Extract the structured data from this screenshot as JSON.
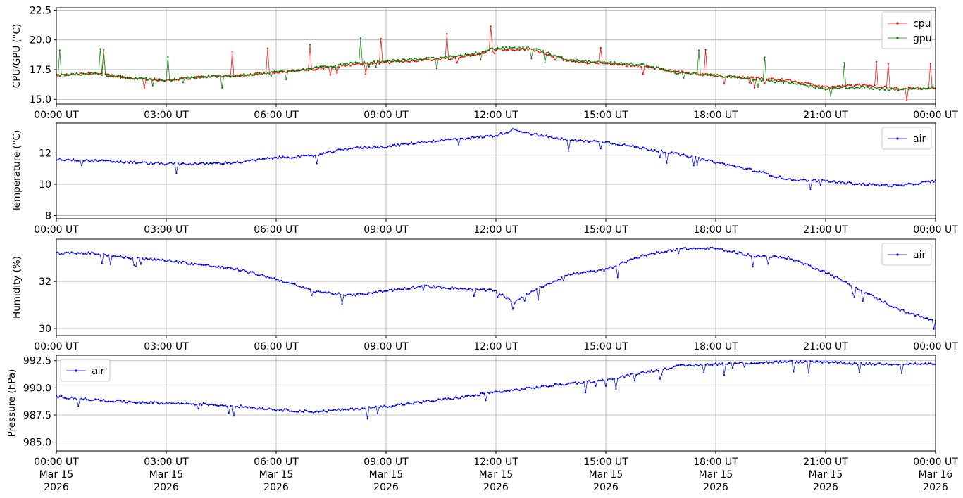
{
  "chart_data": [
    {
      "type": "line",
      "ylabel": "CPU/GPU (°C)",
      "ylim": [
        14.6,
        22.7
      ],
      "yticks": [
        15.0,
        17.5,
        20.0,
        22.5
      ],
      "ytick_labels": [
        "15.0",
        "17.5",
        "20.0",
        "22.5"
      ],
      "grid": true,
      "legend_position": "top-right",
      "x_hours": [
        0,
        1,
        2,
        3,
        4,
        5,
        6,
        7,
        8,
        9,
        10,
        11,
        12,
        13,
        14,
        15,
        16,
        17,
        18,
        19,
        20,
        21,
        22,
        23,
        24
      ],
      "series": [
        {
          "name": "cpu",
          "color": "#ff0000",
          "values": [
            17.0,
            17.2,
            16.8,
            16.6,
            16.9,
            17.0,
            17.3,
            17.5,
            17.9,
            18.1,
            18.3,
            18.5,
            19.2,
            19.2,
            18.2,
            18.0,
            17.8,
            17.3,
            17.0,
            16.8,
            16.6,
            16.0,
            16.2,
            15.9,
            16.0
          ]
        },
        {
          "name": "gpu",
          "color": "#008000",
          "values": [
            17.0,
            17.2,
            16.8,
            16.6,
            16.9,
            17.0,
            17.3,
            17.6,
            18.0,
            18.2,
            18.4,
            18.6,
            19.3,
            19.3,
            18.3,
            18.1,
            17.9,
            17.2,
            17.0,
            16.7,
            16.4,
            15.9,
            16.0,
            15.8,
            16.0
          ]
        }
      ]
    },
    {
      "type": "line",
      "ylabel": "Temperature (°C)",
      "ylim": [
        7.8,
        13.9
      ],
      "yticks": [
        8,
        10,
        12
      ],
      "ytick_labels": [
        "8",
        "10",
        "12"
      ],
      "grid": true,
      "legend_position": "top-right",
      "x_hours": [
        0,
        1,
        2,
        3,
        4,
        5,
        6,
        7,
        8,
        9,
        10,
        11,
        12,
        12.5,
        13,
        14,
        15,
        16,
        17,
        18,
        19,
        20,
        21,
        22,
        23,
        24
      ],
      "series": [
        {
          "name": "air",
          "color": "#0000ff",
          "values": [
            11.6,
            11.5,
            11.4,
            11.3,
            11.3,
            11.4,
            11.7,
            11.8,
            12.3,
            12.4,
            12.7,
            12.9,
            13.1,
            13.5,
            13.2,
            12.8,
            12.7,
            12.3,
            11.9,
            11.4,
            10.9,
            10.3,
            10.2,
            10.0,
            9.9,
            10.2
          ]
        }
      ]
    },
    {
      "type": "line",
      "ylabel": "Humidity (%)",
      "ylim": [
        29.7,
        33.8
      ],
      "yticks": [
        30,
        32
      ],
      "ytick_labels": [
        "30",
        "32"
      ],
      "grid": true,
      "legend_position": "top-right",
      "x_hours": [
        0,
        1,
        2,
        3,
        4,
        5,
        6,
        7,
        8,
        9,
        10,
        11,
        12,
        12.5,
        13,
        14,
        15,
        16,
        17,
        18,
        19,
        20,
        21,
        22,
        23,
        24
      ],
      "series": [
        {
          "name": "air",
          "color": "#0000ff",
          "values": [
            33.2,
            33.2,
            33.0,
            32.9,
            32.7,
            32.5,
            32.1,
            31.6,
            31.4,
            31.6,
            31.8,
            31.7,
            31.6,
            31.1,
            31.6,
            32.3,
            32.5,
            33.1,
            33.4,
            33.4,
            33.1,
            33.0,
            32.4,
            31.6,
            30.8,
            30.3
          ]
        }
      ]
    },
    {
      "type": "line",
      "ylabel": "Pressure (hPa)",
      "ylim": [
        984.2,
        993.0
      ],
      "yticks": [
        985.0,
        987.5,
        990.0,
        992.5
      ],
      "ytick_labels": [
        "985.0",
        "987.5",
        "990.0",
        "992.5"
      ],
      "grid": true,
      "legend_position": "top-left",
      "x_hours": [
        0,
        1,
        2,
        3,
        4,
        5,
        6,
        7,
        8,
        9,
        10,
        11,
        12,
        13,
        14,
        15,
        16,
        17,
        18,
        19,
        20,
        21,
        22,
        23,
        24
      ],
      "series": [
        {
          "name": "air",
          "color": "#0000ff",
          "values": [
            989.2,
            988.9,
            988.7,
            988.6,
            988.5,
            988.3,
            988.0,
            987.8,
            988.0,
            988.3,
            988.7,
            989.1,
            989.6,
            990.0,
            990.4,
            990.7,
            991.4,
            992.0,
            992.2,
            992.3,
            992.4,
            992.4,
            992.2,
            992.2,
            992.2
          ]
        }
      ]
    }
  ],
  "x_axis": {
    "tick_labels": [
      "00:00 UT",
      "03:00 UT",
      "06:00 UT",
      "09:00 UT",
      "12:00 UT",
      "15:00 UT",
      "18:00 UT",
      "21:00 UT",
      "00:00 UT"
    ],
    "date_lines": [
      [
        "Mar 15",
        "2026"
      ],
      [
        "Mar 15",
        "2026"
      ],
      [
        "Mar 15",
        "2026"
      ],
      [
        "Mar 15",
        "2026"
      ],
      [
        "Mar 15",
        "2026"
      ],
      [
        "Mar 15",
        "2026"
      ],
      [
        "Mar 15",
        "2026"
      ],
      [
        "Mar 15",
        "2026"
      ],
      [
        "Mar 16",
        "2026"
      ]
    ]
  }
}
